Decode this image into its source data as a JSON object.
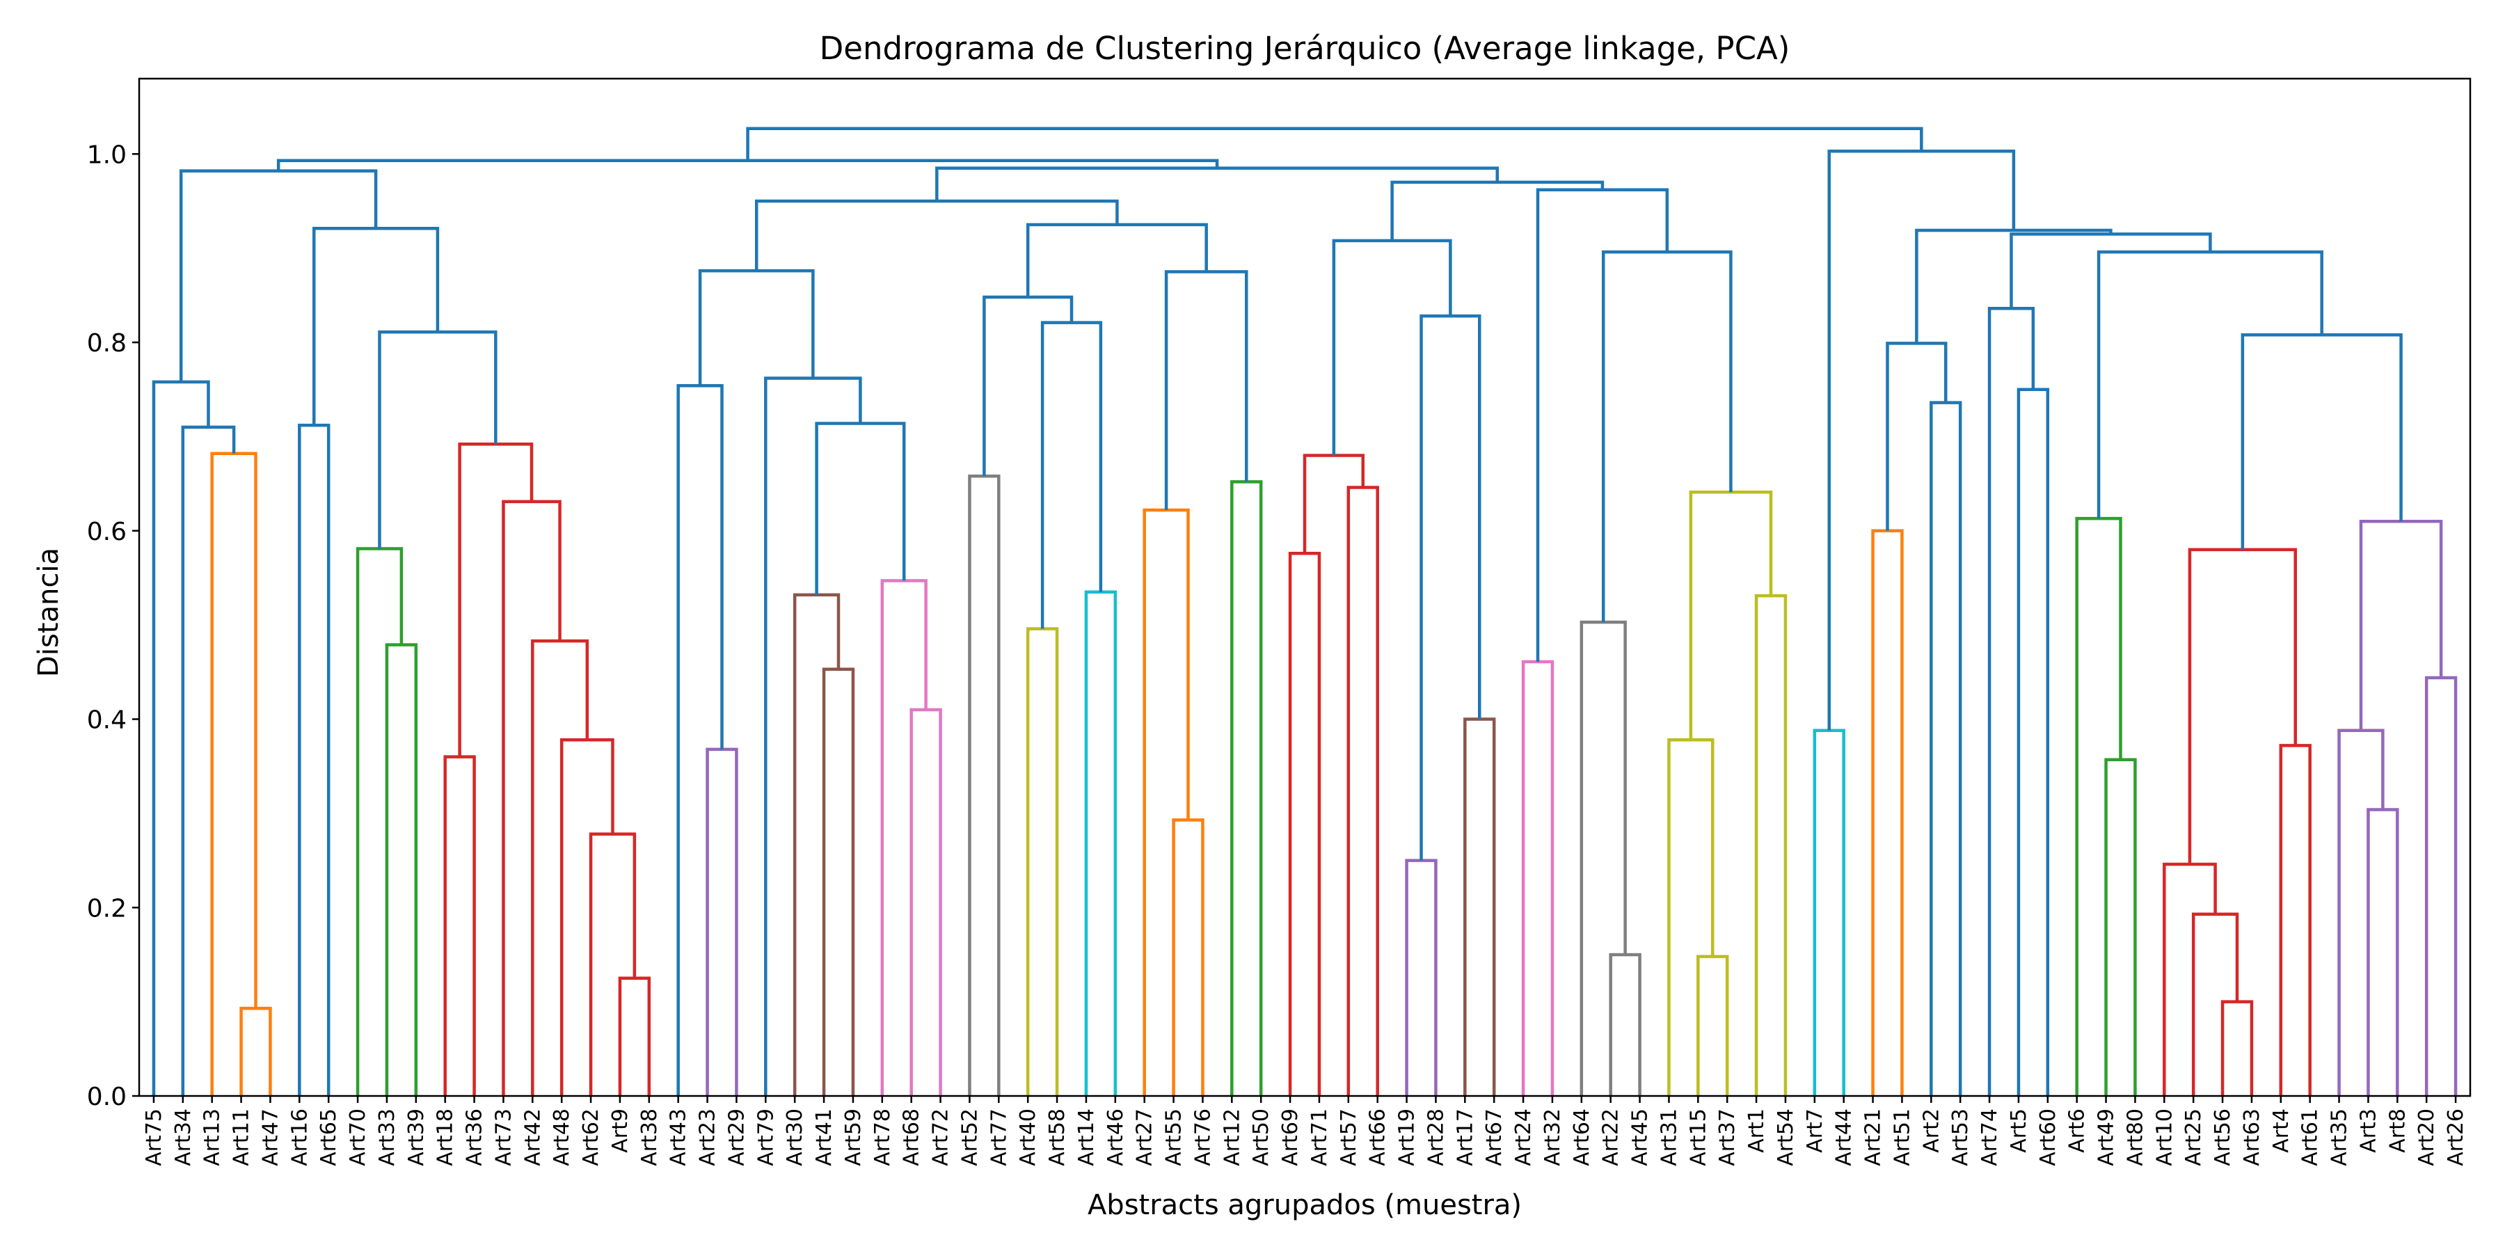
{
  "chart_data": {
    "type": "dendrogram",
    "title": "Dendrograma de Clustering Jerárquico (Average linkage, PCA)",
    "xlabel": "Abstracts agrupados (muestra)",
    "ylabel": "Distancia",
    "ylim": [
      0,
      1.08
    ],
    "yticks": [
      0.0,
      0.2,
      0.4,
      0.6,
      0.8,
      1.0
    ],
    "ytick_labels": [
      "0.0",
      "0.2",
      "0.4",
      "0.6",
      "0.8",
      "1.0"
    ],
    "grid": false,
    "leaves": [
      "Art75",
      "Art34",
      "Art13",
      "Art11",
      "Art47",
      "Art16",
      "Art65",
      "Art70",
      "Art33",
      "Art39",
      "Art18",
      "Art36",
      "Art73",
      "Art42",
      "Art48",
      "Art62",
      "Art9",
      "Art38",
      "Art43",
      "Art23",
      "Art29",
      "Art79",
      "Art30",
      "Art41",
      "Art59",
      "Art78",
      "Art68",
      "Art72",
      "Art52",
      "Art77",
      "Art40",
      "Art58",
      "Art14",
      "Art46",
      "Art27",
      "Art55",
      "Art76",
      "Art12",
      "Art50",
      "Art69",
      "Art71",
      "Art57",
      "Art66",
      "Art19",
      "Art28",
      "Art17",
      "Art67",
      "Art24",
      "Art32",
      "Art64",
      "Art22",
      "Art45",
      "Art31",
      "Art15",
      "Art37",
      "Art1",
      "Art54",
      "Art7",
      "Art44",
      "Art21",
      "Art51",
      "Art2",
      "Art53",
      "Art74",
      "Art5",
      "Art60",
      "Art6",
      "Art49",
      "Art80",
      "Art10",
      "Art25",
      "Art56",
      "Art63",
      "Art4",
      "Art61",
      "Art35",
      "Art3",
      "Art8",
      "Art20",
      "Art26"
    ],
    "colors": {
      "above_threshold": "#1f77b4",
      "C1": "#ff7f0e",
      "C2": "#2ca02c",
      "C3": "#d62728",
      "C4": "#9467bd",
      "C5": "#8c564b",
      "C6": "#e377c2",
      "C7": "#7f7f7f",
      "C8": "#bcbd22",
      "C9": "#17becf"
    },
    "links": [
      {
        "left": 3,
        "right": 4,
        "height": 0.093,
        "color": "C1"
      },
      {
        "left": 2,
        "right": "L1",
        "height": 0.682,
        "color": "C1",
        "id": "L2"
      },
      {
        "left": 8,
        "right": 9,
        "height": 0.479,
        "color": "C2",
        "id": "L3"
      },
      {
        "left": 7,
        "right": "L3",
        "height": 0.581,
        "color": "C2",
        "id": "L4"
      },
      {
        "left": 16,
        "right": 17,
        "height": 0.125,
        "color": "C3",
        "id": "L5"
      },
      {
        "left": 15,
        "right": "L5",
        "height": 0.278,
        "color": "C3",
        "id": "L6"
      },
      {
        "left": 14,
        "right": "L6",
        "height": 0.378,
        "color": "C3",
        "id": "L7"
      },
      {
        "left": 13,
        "right": "L7",
        "height": 0.483,
        "color": "C3",
        "id": "L8"
      },
      {
        "left": 12,
        "right": "L8",
        "height": 0.631,
        "color": "C3",
        "id": "L9"
      },
      {
        "left": 10,
        "right": 11,
        "height": 0.36,
        "color": "C3",
        "id": "L10"
      },
      {
        "left": "L10",
        "right": "L9",
        "height": 0.692,
        "color": "C3",
        "id": "L11"
      },
      {
        "left": 19,
        "right": 20,
        "height": 0.368,
        "color": "C4",
        "id": "L12"
      },
      {
        "left": 23,
        "right": 24,
        "height": 0.453,
        "color": "C5",
        "id": "L13"
      },
      {
        "left": 22,
        "right": "L13",
        "height": 0.532,
        "color": "C5",
        "id": "L14"
      },
      {
        "left": 26,
        "right": 27,
        "height": 0.41,
        "color": "C6",
        "id": "L15"
      },
      {
        "left": 25,
        "right": "L15",
        "height": 0.547,
        "color": "C6",
        "id": "L16"
      },
      {
        "left": 28,
        "right": 29,
        "height": 0.658,
        "color": "C7",
        "id": "L17"
      },
      {
        "left": 30,
        "right": 31,
        "height": 0.496,
        "color": "C8",
        "id": "L18"
      },
      {
        "left": 32,
        "right": 33,
        "height": 0.535,
        "color": "C9",
        "id": "L19"
      },
      {
        "left": 35,
        "right": 36,
        "height": 0.293,
        "color": "C1",
        "id": "L20"
      },
      {
        "left": 34,
        "right": "L20",
        "height": 0.622,
        "color": "C1",
        "id": "L21"
      },
      {
        "left": 37,
        "right": 38,
        "height": 0.652,
        "color": "C2",
        "id": "L22"
      },
      {
        "left": 39,
        "right": 40,
        "height": 0.576,
        "color": "C3",
        "id": "L23"
      },
      {
        "left": 41,
        "right": 42,
        "height": 0.646,
        "color": "C3",
        "id": "L24"
      },
      {
        "left": "L23",
        "right": "L24",
        "height": 0.68,
        "color": "C3",
        "id": "L25"
      },
      {
        "left": 43,
        "right": 44,
        "height": 0.25,
        "color": "C4",
        "id": "L26"
      },
      {
        "left": 45,
        "right": 46,
        "height": 0.4,
        "color": "C5",
        "id": "L27"
      },
      {
        "left": 47,
        "right": 48,
        "height": 0.461,
        "color": "C6",
        "id": "L28"
      },
      {
        "left": 50,
        "right": 51,
        "height": 0.15,
        "color": "C7",
        "id": "L29"
      },
      {
        "left": 49,
        "right": "L29",
        "height": 0.503,
        "color": "C7",
        "id": "L30"
      },
      {
        "left": 53,
        "right": 54,
        "height": 0.148,
        "color": "C8",
        "id": "L31"
      },
      {
        "left": 52,
        "right": "L31",
        "height": 0.378,
        "color": "C8",
        "id": "L32"
      },
      {
        "left": 55,
        "right": 56,
        "height": 0.531,
        "color": "C8",
        "id": "L33"
      },
      {
        "left": "L32",
        "right": "L33",
        "height": 0.641,
        "color": "C8",
        "id": "L34"
      },
      {
        "left": 57,
        "right": 58,
        "height": 0.388,
        "color": "C9",
        "id": "L35"
      },
      {
        "left": 59,
        "right": 60,
        "height": 0.6,
        "color": "C1",
        "id": "L36"
      },
      {
        "left": 67,
        "right": 68,
        "height": 0.357,
        "color": "C2",
        "id": "L37"
      },
      {
        "left": 66,
        "right": "L37",
        "height": 0.613,
        "color": "C2",
        "id": "L38"
      },
      {
        "left": 71,
        "right": 72,
        "height": 0.1,
        "color": "C3",
        "id": "L39"
      },
      {
        "left": 70,
        "right": "L39",
        "height": 0.193,
        "color": "C3",
        "id": "L40"
      },
      {
        "left": 69,
        "right": "L40",
        "height": 0.246,
        "color": "C3",
        "id": "L41"
      },
      {
        "left": 73,
        "right": 74,
        "height": 0.372,
        "color": "C3",
        "id": "L42"
      },
      {
        "left": "L41",
        "right": "L42",
        "height": 0.58,
        "color": "C3",
        "id": "L43"
      },
      {
        "left": 76,
        "right": 77,
        "height": 0.304,
        "color": "C4",
        "id": "L44"
      },
      {
        "left": 75,
        "right": "L44",
        "height": 0.388,
        "color": "C4",
        "id": "L45"
      },
      {
        "left": 78,
        "right": 79,
        "height": 0.444,
        "color": "C4",
        "id": "L46"
      },
      {
        "left": "L45",
        "right": "L46",
        "height": 0.61,
        "color": "C4",
        "id": "L47"
      },
      {
        "left": 1,
        "right": "L2",
        "height": 0.71,
        "color": "above_threshold",
        "id": "L48"
      },
      {
        "left": 0,
        "right": "L48",
        "height": 0.758,
        "color": "above_threshold",
        "id": "L49"
      },
      {
        "left": "L4",
        "right": "L11",
        "height": 0.811,
        "color": "above_threshold",
        "id": "L50"
      },
      {
        "left": 5,
        "right": 6,
        "height": 0.712,
        "color": "above_threshold",
        "id": "L51"
      },
      {
        "left": "L51",
        "right": "L50",
        "height": 0.921,
        "color": "above_threshold",
        "id": "L52"
      },
      {
        "left": "L49",
        "right": "L52",
        "height": 0.982,
        "color": "above_threshold",
        "id": "L53"
      },
      {
        "left": 18,
        "right": "L12",
        "height": 0.754,
        "color": "above_threshold",
        "id": "L54"
      },
      {
        "left": "L14",
        "right": "L16",
        "height": 0.714,
        "color": "above_threshold",
        "id": "L55"
      },
      {
        "left": 21,
        "right": "L55",
        "height": 0.762,
        "color": "above_threshold",
        "id": "L56"
      },
      {
        "left": "L54",
        "right": "L56",
        "height": 0.876,
        "color": "above_threshold",
        "id": "L57"
      },
      {
        "left": "L18",
        "right": "L19",
        "height": 0.821,
        "color": "above_threshold",
        "id": "L58"
      },
      {
        "left": "L17",
        "right": "L58",
        "height": 0.848,
        "color": "above_threshold",
        "id": "L59"
      },
      {
        "left": "L21",
        "right": "L22",
        "height": 0.875,
        "color": "above_threshold",
        "id": "L60"
      },
      {
        "left": "L59",
        "right": "L60",
        "height": 0.925,
        "color": "above_threshold",
        "id": "L61"
      },
      {
        "left": "L57",
        "right": "L61",
        "height": 0.95,
        "color": "above_threshold",
        "id": "L62"
      },
      {
        "left": "L26",
        "right": "L27",
        "height": 0.828,
        "color": "above_threshold",
        "id": "L63"
      },
      {
        "left": "L25",
        "right": "L63",
        "height": 0.908,
        "color": "above_threshold",
        "id": "L64"
      },
      {
        "left": "L30",
        "right": "L34",
        "height": 0.896,
        "color": "above_threshold",
        "id": "L65"
      },
      {
        "left": "L28",
        "right": "L65",
        "height": 0.962,
        "color": "above_threshold",
        "id": "L66"
      },
      {
        "left": "L64",
        "right": "L66",
        "height": 0.97,
        "color": "above_threshold",
        "id": "L67"
      },
      {
        "left": "L62",
        "right": "L67",
        "height": 0.985,
        "color": "above_threshold",
        "id": "L68"
      },
      {
        "left": "L53",
        "right": "L68",
        "height": 0.993,
        "color": "above_threshold",
        "id": "L69"
      },
      {
        "left": 61,
        "right": 62,
        "height": 0.736,
        "color": "above_threshold",
        "id": "L70"
      },
      {
        "left": "L36",
        "right": "L70",
        "height": 0.799,
        "color": "above_threshold",
        "id": "L71"
      },
      {
        "left": 64,
        "right": 65,
        "height": 0.75,
        "color": "above_threshold",
        "id": "L72"
      },
      {
        "left": 63,
        "right": "L72",
        "height": 0.836,
        "color": "above_threshold",
        "id": "L73"
      },
      {
        "left": "L43",
        "right": "L47",
        "height": 0.808,
        "color": "above_threshold",
        "id": "L74"
      },
      {
        "left": "L38",
        "right": "L74",
        "height": 0.896,
        "color": "above_threshold",
        "id": "L75"
      },
      {
        "left": "L73",
        "right": "L75",
        "height": 0.915,
        "color": "above_threshold",
        "id": "L76"
      },
      {
        "left": "L71",
        "right": "L76",
        "height": 0.919,
        "color": "above_threshold",
        "id": "L77"
      },
      {
        "left": "L35",
        "right": "L77",
        "height": 1.003,
        "color": "above_threshold",
        "id": "L78"
      },
      {
        "left": "L69",
        "right": "L78",
        "height": 1.027,
        "color": "above_threshold",
        "id": "L79"
      }
    ]
  }
}
